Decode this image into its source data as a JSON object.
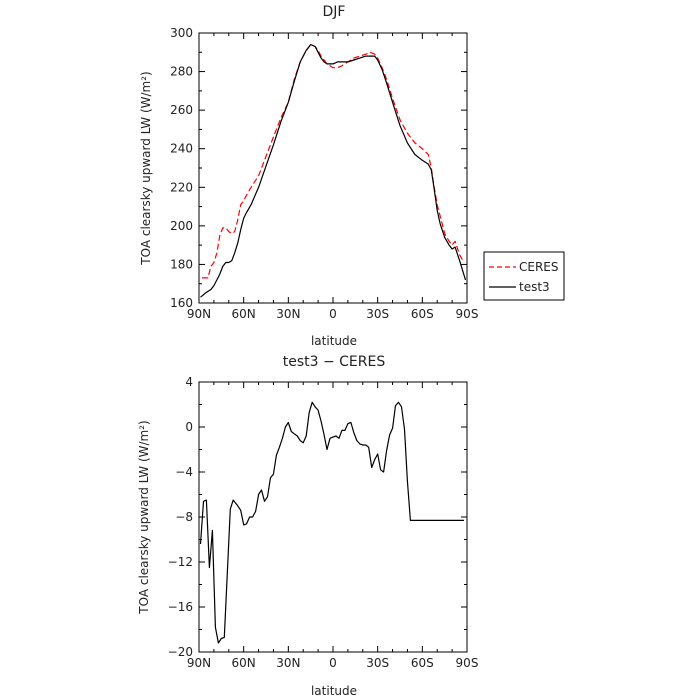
{
  "chart_data": [
    {
      "type": "line",
      "title": "DJF",
      "xlabel": "latitude",
      "ylabel": "TOA clearsky upward LW (W/m²)",
      "xlim": [
        -90,
        90
      ],
      "ylim": [
        160,
        300
      ],
      "x_ticks": [
        -90,
        -60,
        -30,
        0,
        30,
        60,
        90
      ],
      "x_tick_labels": [
        "90N",
        "60N",
        "30N",
        "0",
        "30S",
        "60S",
        "90S"
      ],
      "y_ticks": [
        160,
        180,
        200,
        220,
        240,
        260,
        280,
        300
      ],
      "y_tick_labels": [
        "160",
        "180",
        "200",
        "220",
        "240",
        "260",
        "280",
        "300"
      ],
      "legend": "right",
      "series": [
        {
          "name": "CERES",
          "color": "#ff0000",
          "dash": "dashed",
          "x": [
            -88,
            -86,
            -84,
            -82,
            -80,
            -78,
            -76,
            -74,
            -72,
            -70,
            -68,
            -66,
            -64,
            -62,
            -60,
            -58,
            -55,
            -50,
            -45,
            -40,
            -35,
            -30,
            -26,
            -22,
            -18,
            -15,
            -12,
            -10,
            -8,
            -6,
            -4,
            -2,
            0,
            3,
            6,
            10,
            14,
            18,
            22,
            25,
            28,
            30,
            33,
            36,
            40,
            45,
            50,
            55,
            60,
            64,
            66,
            68,
            70,
            72,
            75,
            78,
            80,
            82,
            85,
            88
          ],
          "y": [
            173,
            173,
            173,
            179,
            181,
            186,
            195,
            199,
            199,
            197,
            196,
            197,
            203,
            211,
            213,
            216,
            220,
            226,
            236,
            246,
            256,
            264,
            276,
            285,
            291,
            294,
            293,
            291,
            288,
            286,
            284,
            283,
            282,
            282,
            283,
            285,
            287,
            288,
            289,
            290,
            289,
            287,
            282,
            276,
            266,
            255,
            248,
            243,
            240,
            237,
            230,
            220,
            211,
            205,
            196,
            192,
            190,
            192,
            185,
            181
          ],
          "_x_range": [
            -88,
            88
          ]
        },
        {
          "name": "test3",
          "color": "#000000",
          "dash": "solid",
          "x": [
            -89,
            -86,
            -84,
            -82,
            -80,
            -78,
            -76,
            -74,
            -72,
            -70,
            -68,
            -66,
            -64,
            -62,
            -60,
            -58,
            -55,
            -50,
            -45,
            -40,
            -35,
            -30,
            -26,
            -22,
            -18,
            -15,
            -12,
            -10,
            -8,
            -6,
            -4,
            -2,
            0,
            3,
            6,
            10,
            14,
            18,
            22,
            25,
            28,
            30,
            33,
            36,
            40,
            45,
            50,
            55,
            60,
            64,
            66,
            68,
            70,
            72,
            75,
            78,
            80,
            82,
            85,
            89
          ],
          "y": [
            163,
            165,
            166,
            167,
            169,
            172,
            175,
            179,
            181,
            181,
            182,
            186,
            191,
            198,
            204,
            207,
            211,
            220,
            231,
            242,
            254,
            264,
            275,
            285,
            291,
            294,
            293,
            290,
            287,
            285,
            284,
            284,
            284,
            285,
            285,
            285,
            286,
            287,
            288,
            288,
            288,
            286,
            281,
            274,
            264,
            252,
            243,
            237,
            234,
            232,
            229,
            219,
            208,
            201,
            194,
            190,
            188,
            189,
            182,
            172
          ]
        }
      ]
    },
    {
      "type": "line",
      "title": "test3 − CERES",
      "xlabel": "latitude",
      "ylabel": "TOA clearsky upward LW (W/m²)",
      "xlim": [
        -90,
        90
      ],
      "ylim": [
        -20,
        4
      ],
      "x_ticks": [
        -90,
        -60,
        -30,
        0,
        30,
        60,
        90
      ],
      "x_tick_labels": [
        "90N",
        "60N",
        "30N",
        "0",
        "30S",
        "60S",
        "90S"
      ],
      "y_ticks": [
        -20,
        -16,
        -12,
        -8,
        -4,
        0,
        4
      ],
      "y_tick_labels": [
        "−20",
        "−16",
        "−12",
        "−8",
        "−4",
        "0",
        "4"
      ],
      "series": [
        {
          "color": "#000000",
          "dash": "solid",
          "x": [
            -89,
            -87,
            -85,
            -83,
            -81,
            -79,
            -77,
            -75,
            -73,
            -71,
            -69,
            -67,
            -64,
            -62,
            -60,
            -58,
            -56,
            -54,
            -52,
            -50,
            -48,
            -46,
            -44,
            -42,
            -40,
            -38,
            -36,
            -34,
            -32,
            -30,
            -28,
            -26,
            -24,
            -22,
            -20,
            -18,
            -16,
            -14,
            -12,
            -10,
            -8,
            -6,
            -4,
            -2,
            0,
            2,
            4,
            6,
            8,
            10,
            12,
            14,
            16,
            18,
            20,
            22,
            24,
            26,
            28,
            30,
            32,
            34,
            36,
            38,
            40,
            42,
            44,
            46,
            48,
            50,
            52,
            54,
            56,
            58,
            60,
            62,
            64,
            66,
            68,
            70,
            72,
            74,
            76,
            78,
            80,
            82,
            84,
            86,
            88
          ],
          "y": [
            -10.4,
            -6.6,
            -6.5,
            -12.5,
            -9.2,
            -17.8,
            -19.2,
            -18.8,
            -18.7,
            -13.0,
            -7.3,
            -6.5,
            -7.0,
            -7.4,
            -8.7,
            -8.6,
            -8.0,
            -8.0,
            -7.5,
            -6.0,
            -5.6,
            -6.6,
            -6.2,
            -4.5,
            -4.2,
            -2.5,
            -1.8,
            -1.0,
            0.0,
            0.4,
            -0.4,
            -0.6,
            -0.8,
            -1.2,
            -1.4,
            -0.8,
            1.3,
            2.2,
            1.8,
            1.5,
            0.5,
            -0.7,
            -2.0,
            -1.0,
            -0.9,
            -0.8,
            -1.0,
            -0.3,
            -0.3,
            0.3,
            0.4,
            -0.5,
            -1.2,
            -1.5,
            -1.6,
            -1.6,
            -1.8,
            -3.6,
            -2.9,
            -2.4,
            -3.8,
            -4.0,
            -2.1,
            -0.7,
            -0.1,
            1.9,
            2.2,
            1.8,
            -0.2,
            -4.8,
            -8.3,
            -8.3,
            -8.3,
            -8.3,
            -8.3,
            -8.3,
            -8.3,
            -8.3,
            -8.3,
            -8.3,
            -8.3,
            -8.3,
            -8.3,
            -8.3,
            -8.3,
            -8.3,
            -8.3,
            -8.3,
            -8.3
          ],
          "_note_x_range": [
            -89,
            89
          ]
        }
      ]
    }
  ]
}
